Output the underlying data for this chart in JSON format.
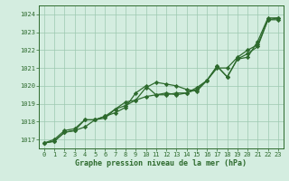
{
  "x": [
    0,
    1,
    2,
    3,
    4,
    5,
    6,
    7,
    8,
    9,
    10,
    11,
    12,
    13,
    14,
    15,
    16,
    17,
    18,
    19,
    20,
    21,
    22,
    23
  ],
  "line1": [
    1016.8,
    1016.9,
    1017.4,
    1017.5,
    1017.7,
    1018.1,
    1018.3,
    1018.5,
    1018.8,
    1019.6,
    1020.0,
    1019.5,
    1019.6,
    1019.5,
    1019.6,
    1019.8,
    1020.3,
    1021.1,
    1020.5,
    1021.5,
    1021.8,
    1022.2,
    1023.7,
    1023.7
  ],
  "line2": [
    1016.8,
    1017.0,
    1017.5,
    1017.6,
    1018.1,
    1018.1,
    1018.2,
    1018.7,
    1019.1,
    1019.2,
    1019.4,
    1019.5,
    1019.5,
    1019.6,
    1019.6,
    1019.9,
    1020.3,
    1021.0,
    1021.0,
    1021.6,
    1022.0,
    1022.3,
    1023.7,
    1023.8
  ],
  "line3": [
    1016.8,
    1016.9,
    1017.4,
    1017.5,
    1018.1,
    1018.1,
    1018.3,
    1018.7,
    1018.9,
    1019.2,
    1019.9,
    1020.2,
    1020.1,
    1020.0,
    1019.8,
    1019.7,
    1020.3,
    1021.1,
    1020.5,
    1021.5,
    1021.6,
    1022.5,
    1023.8,
    1023.8
  ],
  "color": "#2d6a2d",
  "bg_color": "#d4ede0",
  "grid_color": "#9dc8b0",
  "xlabel": "Graphe pression niveau de la mer (hPa)",
  "ylim_min": 1016.5,
  "ylim_max": 1024.5,
  "xlim_min": -0.5,
  "xlim_max": 23.5,
  "yticks": [
    1017,
    1018,
    1019,
    1020,
    1021,
    1022,
    1023,
    1024
  ],
  "xticks": [
    0,
    1,
    2,
    3,
    4,
    5,
    6,
    7,
    8,
    9,
    10,
    11,
    12,
    13,
    14,
    15,
    16,
    17,
    18,
    19,
    20,
    21,
    22,
    23
  ],
  "marker": "D",
  "markersize": 2.2,
  "linewidth": 0.9,
  "tick_fontsize": 5.0,
  "xlabel_fontsize": 6.0
}
